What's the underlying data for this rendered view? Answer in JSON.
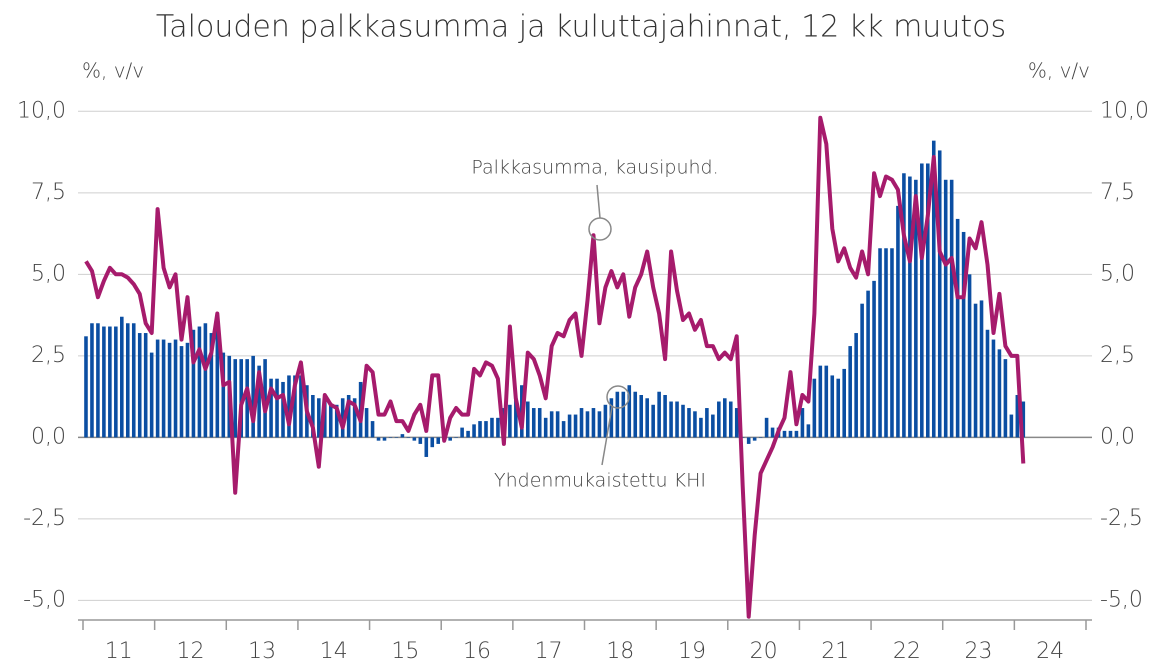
{
  "chart_data": {
    "type": "bar-line",
    "title": "Talouden palkkasumma ja kuluttajahinnat, 12 kk muutos",
    "ylabel": "%, v/v",
    "y2label": "%, v/v",
    "categories": [
      null,
      null,
      null,
      null,
      null,
      null,
      "11",
      null,
      null,
      null,
      null,
      null,
      null,
      null,
      null,
      null,
      null,
      null,
      "12",
      null,
      null,
      null,
      null,
      null,
      null,
      null,
      null,
      null,
      null,
      null,
      "13",
      null,
      null,
      null,
      null,
      null,
      null,
      null,
      null,
      null,
      null,
      null,
      "14",
      null,
      null,
      null,
      null,
      null,
      null,
      null,
      null,
      null,
      null,
      null,
      "15",
      null,
      null,
      null,
      null,
      null,
      null,
      null,
      null,
      null,
      null,
      null,
      "16",
      null,
      null,
      null,
      null,
      null,
      null,
      null,
      null,
      null,
      null,
      null,
      "17",
      null,
      null,
      null,
      null,
      null,
      null,
      null,
      null,
      null,
      null,
      null,
      "18",
      null,
      null,
      null,
      null,
      null,
      null,
      null,
      null,
      null,
      null,
      null,
      "19",
      null,
      null,
      null,
      null,
      null,
      null,
      null,
      null,
      null,
      null,
      null,
      "20",
      null,
      null,
      null,
      null,
      null,
      null,
      null,
      null,
      null,
      null,
      null,
      "21",
      null,
      null,
      null,
      null,
      null,
      null,
      null,
      null,
      null,
      null,
      null,
      "22",
      null,
      null,
      null,
      null,
      null,
      null,
      null,
      null,
      null,
      null,
      null,
      "23",
      null,
      null,
      null,
      null,
      null,
      null,
      null,
      null,
      null,
      null,
      null,
      "24",
      null,
      null,
      null,
      null,
      null
    ],
    "series": [
      {
        "name": "Yhdenmukaistettu KHI",
        "type": "bar",
        "color": "#0b4ea2",
        "values": [
          3.1,
          3.5,
          3.5,
          3.4,
          3.4,
          3.4,
          3.7,
          3.5,
          3.5,
          3.2,
          3.2,
          2.6,
          3.0,
          3.0,
          2.9,
          3.0,
          2.8,
          2.9,
          3.3,
          3.4,
          3.5,
          3.2,
          3.5,
          2.6,
          2.5,
          2.4,
          2.4,
          2.4,
          2.5,
          2.2,
          2.4,
          1.8,
          1.8,
          1.7,
          1.9,
          1.9,
          1.9,
          1.6,
          1.3,
          1.2,
          1.2,
          1.0,
          1.0,
          1.2,
          1.3,
          1.2,
          1.7,
          0.9,
          0.5,
          -0.1,
          -0.1,
          0.0,
          0.0,
          0.1,
          0.0,
          -0.1,
          -0.2,
          -0.6,
          -0.3,
          -0.2,
          -0.1,
          -0.1,
          0.0,
          0.3,
          0.2,
          0.4,
          0.5,
          0.5,
          0.6,
          0.6,
          0.9,
          1.0,
          1.2,
          1.6,
          1.1,
          0.9,
          0.9,
          0.6,
          0.8,
          0.8,
          0.5,
          0.7,
          0.7,
          0.9,
          0.8,
          0.9,
          0.8,
          1.0,
          1.2,
          1.4,
          1.4,
          1.6,
          1.4,
          1.3,
          1.2,
          1.0,
          1.4,
          1.3,
          1.1,
          1.1,
          1.0,
          0.9,
          0.8,
          0.6,
          0.9,
          0.7,
          1.1,
          1.2,
          1.1,
          0.9,
          0.0,
          -0.2,
          -0.1,
          0.0,
          0.6,
          0.3,
          0.3,
          0.2,
          0.2,
          0.2,
          0.9,
          0.4,
          1.8,
          2.2,
          2.2,
          1.9,
          1.8,
          2.1,
          2.8,
          3.2,
          4.1,
          4.5,
          4.8,
          5.8,
          5.8,
          5.8,
          7.1,
          8.1,
          8.0,
          7.9,
          8.4,
          8.4,
          9.1,
          8.8,
          7.9,
          7.9,
          6.7,
          6.3,
          5.0,
          4.1,
          4.2,
          3.3,
          3.0,
          2.7,
          2.4,
          0.7,
          1.3,
          1.1,
          null,
          null,
          null,
          null,
          null,
          null,
          null,
          null,
          null,
          null
        ]
      },
      {
        "name": "Palkkasumma, kausipuhd.",
        "type": "line",
        "color": "#a61b6c",
        "values": [
          5.4,
          5.1,
          4.3,
          4.8,
          5.2,
          5.0,
          5.0,
          4.9,
          4.7,
          4.4,
          3.5,
          3.2,
          7.0,
          5.2,
          4.6,
          5.0,
          3.0,
          4.3,
          2.3,
          2.7,
          2.1,
          2.6,
          3.8,
          1.6,
          1.7,
          -1.7,
          1.0,
          1.5,
          0.5,
          2.0,
          0.8,
          1.5,
          1.2,
          1.3,
          0.4,
          1.6,
          2.3,
          0.8,
          0.3,
          -0.9,
          1.3,
          1.0,
          0.9,
          0.3,
          1.1,
          1.0,
          0.5,
          2.2,
          2.0,
          0.7,
          0.7,
          1.1,
          0.5,
          0.5,
          0.2,
          0.7,
          1.0,
          0.2,
          1.9,
          1.9,
          -0.1,
          0.6,
          0.9,
          0.7,
          0.7,
          2.1,
          1.9,
          2.3,
          2.2,
          1.8,
          -0.2,
          3.4,
          1.2,
          0.3,
          2.6,
          2.4,
          1.9,
          1.2,
          2.8,
          3.2,
          3.1,
          3.6,
          3.8,
          2.5,
          4.2,
          6.2,
          3.5,
          4.6,
          5.1,
          4.6,
          5.0,
          3.7,
          4.6,
          5.0,
          5.7,
          4.6,
          3.8,
          2.4,
          5.7,
          4.5,
          3.6,
          3.8,
          3.3,
          3.6,
          2.8,
          2.8,
          2.4,
          2.6,
          2.4,
          3.1,
          -1.5,
          -5.5,
          -3.0,
          -1.1,
          -0.7,
          -0.3,
          0.2,
          0.6,
          2.0,
          0.4,
          1.3,
          1.1,
          3.8,
          9.8,
          9.0,
          6.4,
          5.4,
          5.8,
          5.2,
          4.9,
          5.7,
          5.0,
          8.1,
          7.4,
          8.0,
          7.9,
          7.6,
          6.2,
          5.4,
          7.4,
          5.5,
          6.8,
          8.6,
          5.7,
          5.3,
          5.5,
          4.3,
          4.3,
          6.1,
          5.8,
          6.6,
          5.3,
          3.2,
          4.4,
          2.8,
          2.5,
          2.5,
          -0.8,
          null,
          null,
          null,
          null,
          null,
          null,
          null,
          null,
          null,
          null
        ]
      }
    ],
    "ylim": [
      -5.6,
      10.5
    ],
    "yticks": [
      {
        "value": -5,
        "label": "-5,0"
      },
      {
        "value": -2.5,
        "label": "-2,5"
      },
      {
        "value": 0,
        "label": "0,0"
      },
      {
        "value": 2.5,
        "label": "2,5"
      },
      {
        "value": 5,
        "label": "5,0"
      },
      {
        "value": 7.5,
        "label": "7,5"
      },
      {
        "value": 10,
        "label": "10,0"
      }
    ],
    "y2lim": [
      -5.6,
      10.5
    ],
    "y2ticks": [
      {
        "value": -5,
        "label": "-5,0"
      },
      {
        "value": -2.5,
        "label": "-2,5"
      },
      {
        "value": 0,
        "label": "0,0"
      },
      {
        "value": 2.5,
        "label": "2,5"
      },
      {
        "value": 5,
        "label": "5,0"
      },
      {
        "value": 7.5,
        "label": "7,5"
      },
      {
        "value": 10,
        "label": "10,0"
      }
    ],
    "grid": true,
    "annotations": [
      "Palkkasumma, kausipuhd.",
      "Yhdenmukaistettu KHI"
    ]
  }
}
